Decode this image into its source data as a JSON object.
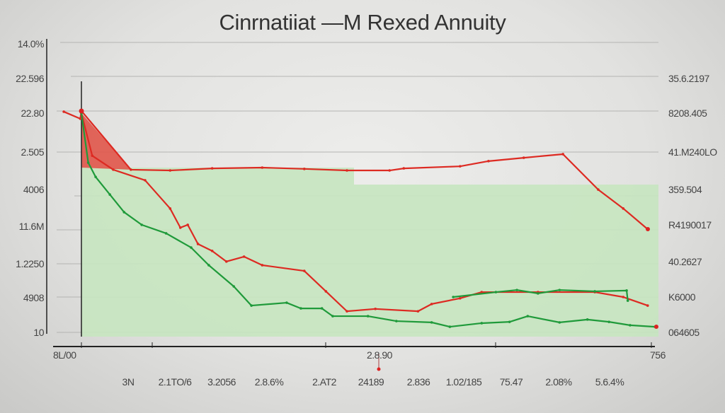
{
  "chart_data": {
    "type": "line",
    "title": "Cinrnatiiat —M Rexed Annuity",
    "xlabel": "",
    "ylabel": "",
    "xlim": [
      0,
      100
    ],
    "ylim": [
      0,
      100
    ],
    "grid": true,
    "left_tick_labels": [
      "14.0%",
      "22.596",
      "22.80",
      "2.505",
      "4006",
      "11.6M",
      "1.2250",
      "4908",
      "10"
    ],
    "right_tick_labels": [
      "35.6.2197",
      "8208.405",
      "41.M240LO",
      "359.504",
      "R4190017",
      "40.2627",
      "K6000",
      "064605"
    ],
    "x_axis_end_labels": [
      "8L/00",
      "2.8.90",
      "756"
    ],
    "x_tick_labels": [
      "3N",
      "2.1TO/6",
      "3.2056",
      "2.8.6%",
      "2.AT2",
      "24189",
      "2.836",
      "1.02/185",
      "75.47",
      "2.08%",
      "5.6.4%"
    ],
    "colors": {
      "red": "#dd2a22",
      "green": "#1f9a3a",
      "green_fill": "#c6e5c0",
      "red_fill": "#e0554a"
    },
    "series": [
      {
        "name": "red-upper",
        "color": "#dd2a22",
        "points": [
          [
            -3.1,
            86.9
          ],
          [
            -0.2,
            84.2
          ],
          [
            0,
            87.2
          ],
          [
            8.7,
            64.5
          ],
          [
            15.6,
            64.2
          ],
          [
            23.0,
            65.0
          ],
          [
            31.8,
            65.3
          ],
          [
            39.2,
            64.8
          ],
          [
            46.7,
            64.2
          ],
          [
            54.2,
            64.2
          ],
          [
            56.7,
            65.0
          ],
          [
            66.6,
            65.8
          ],
          [
            71.6,
            67.8
          ],
          [
            77.8,
            69.1
          ],
          [
            84.7,
            70.5
          ],
          [
            90.9,
            56.8
          ],
          [
            95.3,
            49.5
          ],
          [
            99.6,
            41.5
          ]
        ]
      },
      {
        "name": "red-lower",
        "color": "#dd2a22",
        "points": [
          [
            0,
            86.3
          ],
          [
            1.9,
            69.9
          ],
          [
            5.6,
            64.5
          ],
          [
            11.2,
            60.4
          ],
          [
            15.6,
            49.5
          ],
          [
            17.4,
            42.1
          ],
          [
            18.7,
            43.2
          ],
          [
            20.5,
            35.8
          ],
          [
            23.0,
            33.1
          ],
          [
            25.5,
            29.0
          ],
          [
            28.6,
            30.9
          ],
          [
            31.8,
            27.6
          ],
          [
            39.2,
            25.4
          ],
          [
            43.0,
            17.5
          ],
          [
            46.7,
            9.8
          ],
          [
            51.7,
            10.7
          ],
          [
            59.2,
            9.8
          ],
          [
            61.6,
            12.6
          ],
          [
            66.6,
            14.8
          ],
          [
            70.4,
            17.2
          ],
          [
            80.3,
            17.2
          ],
          [
            90.3,
            17.2
          ],
          [
            95.3,
            15.3
          ],
          [
            99.6,
            12.0
          ]
        ]
      },
      {
        "name": "green-main",
        "color": "#1f9a3a",
        "points": [
          [
            0,
            86.3
          ],
          [
            1.2,
            67.2
          ],
          [
            2.5,
            61.7
          ],
          [
            5.0,
            54.9
          ],
          [
            7.5,
            48.1
          ],
          [
            10.6,
            43.2
          ],
          [
            14.9,
            39.9
          ],
          [
            19.3,
            34.4
          ],
          [
            22.4,
            27.6
          ],
          [
            26.8,
            19.4
          ],
          [
            29.9,
            12.0
          ],
          [
            36.1,
            13.1
          ],
          [
            38.6,
            10.9
          ],
          [
            42.3,
            10.9
          ],
          [
            44.2,
            7.9
          ],
          [
            50.4,
            7.9
          ],
          [
            55.4,
            6.0
          ],
          [
            61.6,
            5.5
          ],
          [
            64.8,
            3.8
          ],
          [
            70.4,
            5.2
          ],
          [
            75.3,
            5.7
          ],
          [
            78.5,
            7.9
          ],
          [
            84.1,
            5.5
          ],
          [
            89.0,
            6.6
          ],
          [
            92.8,
            5.7
          ],
          [
            96.5,
            4.4
          ],
          [
            100.9,
            3.8
          ]
        ]
      },
      {
        "name": "green-upper",
        "color": "#1f9a3a",
        "points": [
          [
            65.4,
            15.3
          ],
          [
            72.9,
            17.2
          ],
          [
            76.6,
            18.0
          ],
          [
            80.3,
            16.7
          ],
          [
            84.1,
            18.0
          ],
          [
            90.3,
            17.5
          ],
          [
            95.9,
            17.8
          ],
          [
            96.1,
            13.9
          ]
        ]
      }
    ]
  }
}
